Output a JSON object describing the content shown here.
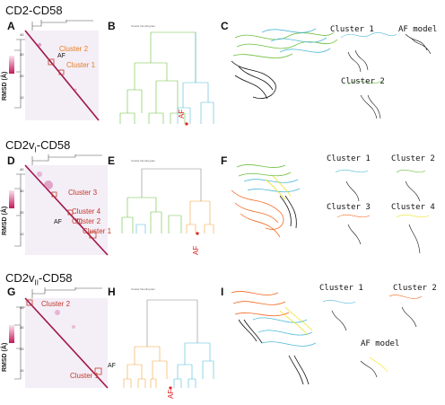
{
  "rows": [
    {
      "title_main": "CD2-CD58",
      "title_sub": "",
      "panels": [
        "A",
        "B",
        "C"
      ],
      "heatmap_labels": [
        {
          "text": "Cluster 2",
          "color": "#e67e22"
        },
        {
          "text": "AF",
          "color": "#111111"
        },
        {
          "text": "Cluster 1",
          "color": "#e67e22"
        }
      ],
      "structure_labels": [
        "Cluster 1",
        "AF model",
        "Cluster 2"
      ],
      "dendro_title": "Cluster Dendrogram",
      "af_tag": "AF",
      "ticks": [
        "40",
        "30",
        "20",
        "10"
      ]
    },
    {
      "title_main": "CD2v",
      "title_sub": "I",
      "title_end": "-CD58",
      "panels": [
        "D",
        "E",
        "F"
      ],
      "heatmap_labels": [
        {
          "text": "Cluster 3",
          "color": "#c0392b"
        },
        {
          "text": "Cluster 4",
          "color": "#c0392b"
        },
        {
          "text": "AF",
          "color": "#111111"
        },
        {
          "text": "Cluster 2",
          "color": "#c0392b"
        },
        {
          "text": "Cluster 1",
          "color": "#c0392b"
        }
      ],
      "structure_labels": [
        "Cluster 1",
        "Cluster 2",
        "Cluster 3",
        "Cluster 4"
      ],
      "dendro_title": "Cluster Dendrogram",
      "af_tag": "AF",
      "ticks": [
        "40",
        "30",
        "20",
        "10"
      ]
    },
    {
      "title_main": "CD2v",
      "title_sub": "II",
      "title_end": "-CD58",
      "panels": [
        "G",
        "H",
        "I"
      ],
      "heatmap_labels": [
        {
          "text": "Cluster 2",
          "color": "#c0392b"
        },
        {
          "text": "Cluster 1",
          "color": "#c0392b"
        },
        {
          "text": "AF",
          "color": "#111111"
        }
      ],
      "structure_labels": [
        "Cluster 1",
        "Cluster 2",
        "AF model"
      ],
      "dendro_title": "Cluster Dendrogram",
      "af_tag": "AF",
      "ticks": [
        "40",
        "30",
        "20",
        "10"
      ]
    }
  ],
  "axis_label": "RMSD (Å)",
  "colors": {
    "heat_dark": "#a0154a",
    "heat_light": "#f1e6f6",
    "green": "#6cbf3c",
    "cyan": "#4fb9d8",
    "orange": "#f26a21",
    "yellow": "#f2e21b",
    "black": "#111111",
    "red": "#e02020"
  }
}
